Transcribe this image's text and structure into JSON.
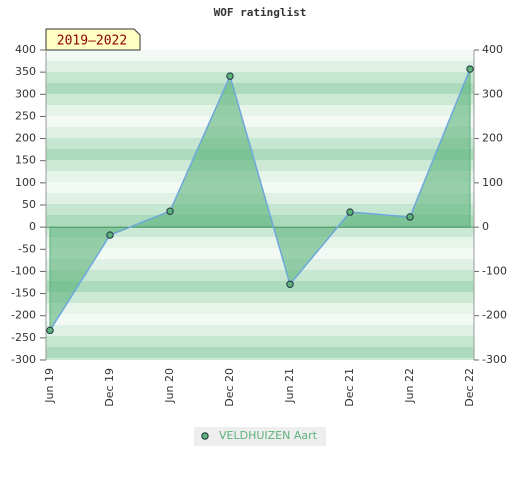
{
  "chart_data": {
    "type": "area",
    "title": "WOF ratinglist",
    "annotation": "2019–2022",
    "categories": [
      "Jun 19",
      "Dec 19",
      "Jun 20",
      "Dec 20",
      "Jun 21",
      "Dec 21",
      "Jun 22",
      "Dec 22"
    ],
    "series": [
      {
        "name": "VELDHUIZEN Aart",
        "color": "#5cb27a",
        "line_color": "#6fa8dc",
        "values": [
          -233,
          -18,
          36,
          341,
          -129,
          34,
          23,
          357
        ]
      }
    ],
    "ylim": [
      -300,
      400
    ],
    "yticks": [
      -300,
      -250,
      -200,
      -150,
      -100,
      -50,
      0,
      50,
      100,
      150,
      200,
      250,
      300,
      350,
      400
    ],
    "y2lim": [
      -300,
      400
    ],
    "y2ticks": [
      -300,
      -200,
      -100,
      0,
      100,
      200,
      300,
      400
    ],
    "legend": "bottom"
  }
}
